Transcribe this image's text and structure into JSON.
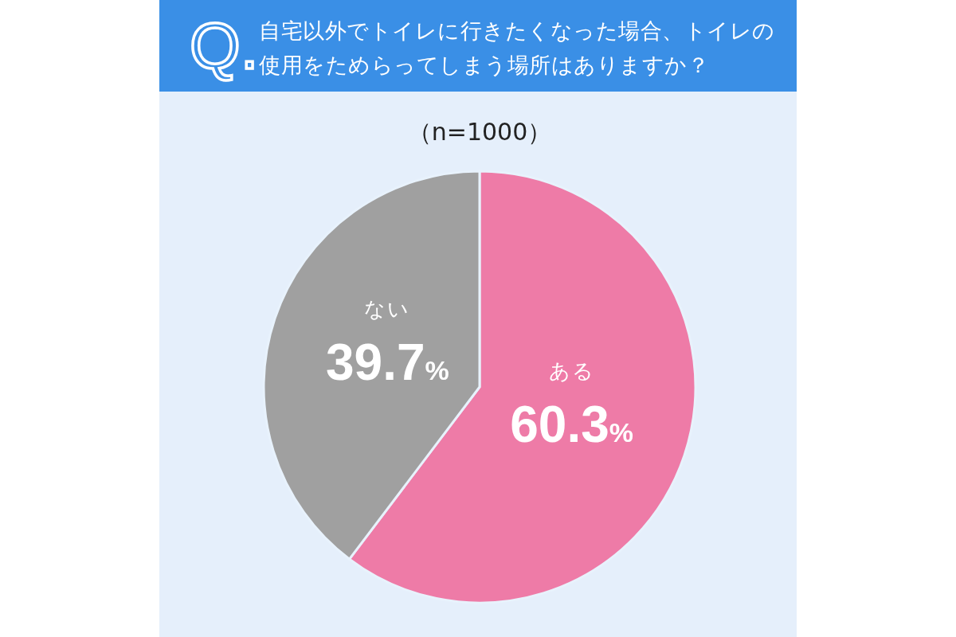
{
  "chart_data": {
    "type": "pie",
    "title": "自宅以外でトイレに行きたくなった場合、トイレの使用をためらってしまう場所はありますか？",
    "subtitle": "（n=1000）",
    "annotations": [
      "Q."
    ],
    "categories": [
      "ある",
      "ない"
    ],
    "values": [
      60.3,
      39.7
    ],
    "colors": [
      "#ee7ba7",
      "#a0a0a0"
    ],
    "value_labels": [
      "60.3%",
      "39.7%"
    ],
    "legend": false
  }
}
